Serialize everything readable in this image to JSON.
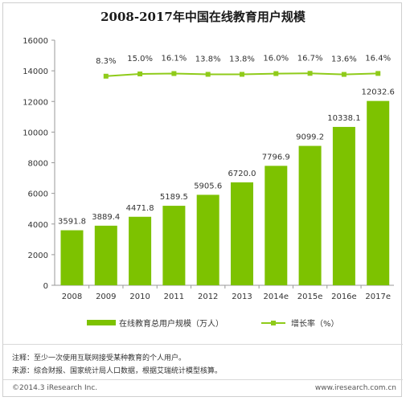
{
  "chart_data": {
    "type": "bar+line",
    "title": "2008-2017年中国在线教育用户规模",
    "categories": [
      "2008",
      "2009",
      "2010",
      "2011",
      "2012",
      "2013",
      "2014e",
      "2015e",
      "2016e",
      "2017e"
    ],
    "series": [
      {
        "name": "在线教育总用户规模（万人）",
        "type": "bar",
        "values": [
          3591.8,
          3889.4,
          4471.8,
          5189.5,
          5905.6,
          6720.0,
          7796.9,
          9099.2,
          10338.1,
          12032.6
        ],
        "labels": [
          "3591.8",
          "3889.4",
          "4471.8",
          "5189.5",
          "5905.6",
          "6720.0",
          "7796.9",
          "9099.2",
          "10338.1",
          "12032.6"
        ]
      },
      {
        "name": "增长率（%）",
        "type": "line",
        "values": [
          null,
          8.3,
          15.0,
          16.1,
          13.8,
          13.8,
          16.0,
          16.7,
          13.6,
          16.4
        ],
        "labels": [
          "",
          "8.3%",
          "15.0%",
          "16.1%",
          "13.8%",
          "13.8%",
          "16.0%",
          "16.7%",
          "13.6%",
          "16.4%"
        ]
      }
    ],
    "y_ticks": [
      "0",
      "2000",
      "4000",
      "6000",
      "8000",
      "10000",
      "12000",
      "14000",
      "16000"
    ],
    "ylim": [
      0,
      16000
    ],
    "grid": false,
    "legend_position": "bottom",
    "colors": {
      "bar": "#7dc200",
      "line": "#8fcb1a",
      "axis": "#999999",
      "text": "#333333"
    }
  },
  "notes": {
    "note1": "注释：至少一次使用互联网接受某种教育的个人用户。",
    "note2": "来源：综合财报、国家统计局人口数据，根据艾瑞统计模型核算。"
  },
  "footer": {
    "copyright": "©2014.3 iResearch Inc.",
    "website": "www.iresearch.com.cn"
  }
}
